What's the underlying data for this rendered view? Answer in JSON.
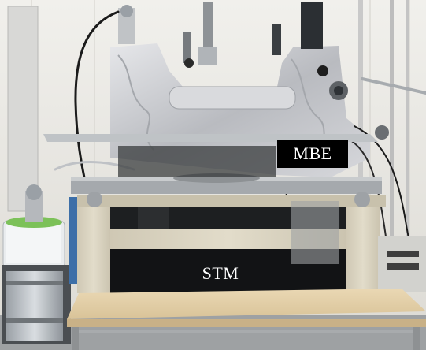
{
  "labels": {
    "mbe": "MBE",
    "stm": "STM"
  },
  "colors": {
    "wall": "#ecebe7",
    "frame": "#d9d2bf",
    "foil": "#cfd0d3",
    "table_top": "#e4cfa8",
    "label_box": "#000000",
    "label_text": "#ffffff"
  }
}
